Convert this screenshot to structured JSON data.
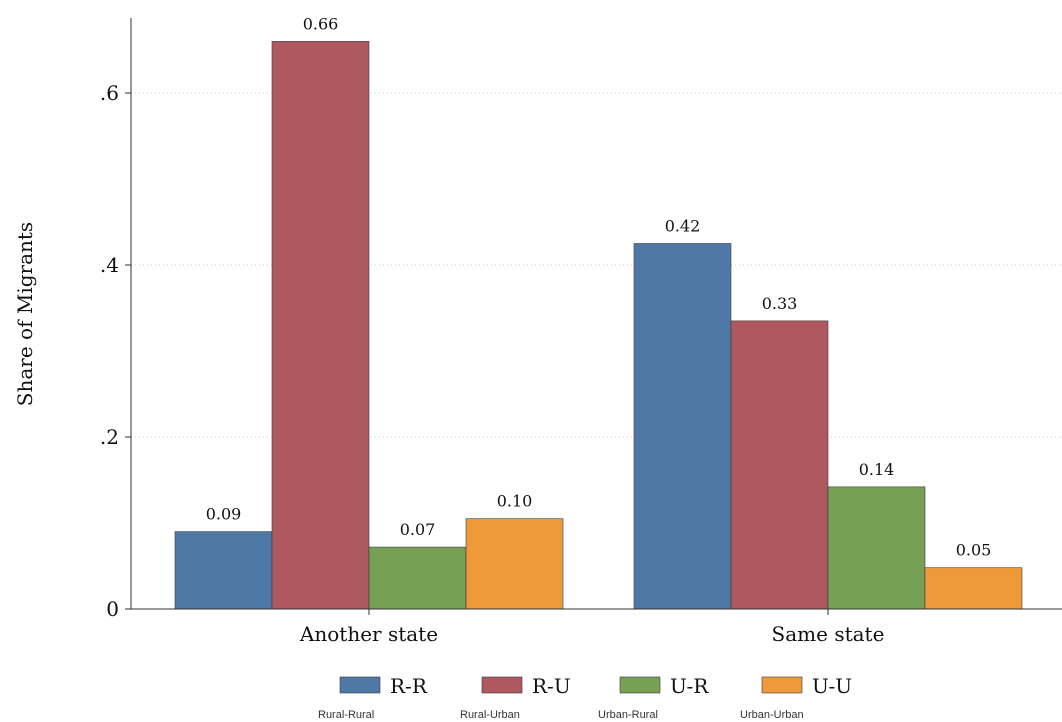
{
  "chart_data": {
    "type": "bar",
    "ylabel": "Share of Migrants",
    "ylim": [
      0,
      0.7
    ],
    "yticks": [
      {
        "value": 0,
        "label": "0"
      },
      {
        "value": 0.2,
        "label": ".2"
      },
      {
        "value": 0.4,
        "label": ".4"
      },
      {
        "value": 0.6,
        "label": ".6"
      }
    ],
    "grid": true,
    "legend_position": "bottom",
    "categories": [
      "Another state",
      "Same state"
    ],
    "series": [
      {
        "name": "R-R",
        "subtitle": "Rural-Rural",
        "color": "#4e79a7",
        "values": [
          0.09,
          0.425
        ],
        "labels": [
          "0.09",
          "0.42"
        ]
      },
      {
        "name": "R-U",
        "subtitle": "Rural-Urban",
        "color": "#b0585f",
        "values": [
          0.66,
          0.335
        ],
        "labels": [
          "0.66",
          "0.33"
        ]
      },
      {
        "name": "U-R",
        "subtitle": "Urban-Rural",
        "color": "#78a055",
        "values": [
          0.072,
          0.142
        ],
        "labels": [
          "0.07",
          "0.14"
        ]
      },
      {
        "name": "U-U",
        "subtitle": "Urban-Urban",
        "color": "#ee9a3a",
        "values": [
          0.105,
          0.048
        ],
        "labels": [
          "0.10",
          "0.05"
        ]
      }
    ]
  }
}
